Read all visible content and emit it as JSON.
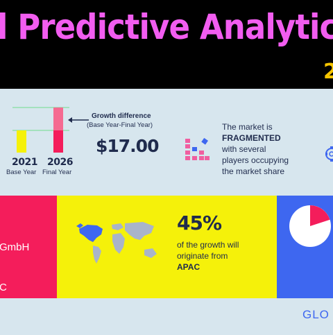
{
  "header": {
    "title": "l Predictive Analytics M",
    "year_fragment": "2"
  },
  "growth": {
    "label": "Growth difference",
    "sublabel": "(Base Year-Final Year)",
    "value": "$17.00",
    "base_year": "2021",
    "base_caption": "Base Year",
    "final_year": "2026",
    "final_caption": "Final Year"
  },
  "market": {
    "line1": "The market is",
    "line2": "FRAGMENTED",
    "line3": "with several",
    "line4": "players occupying",
    "line5": "the market share"
  },
  "vendors": {
    "item1": "GmbH",
    "item2": "C"
  },
  "region": {
    "percent": "45%",
    "line1": "of the growth will",
    "line2": "originate from",
    "region_name": "APAC"
  },
  "footer": {
    "brand": "GLO"
  },
  "colors": {
    "pink": "#f41d5b",
    "yellow": "#f5f10a",
    "blue": "#3e67f0",
    "magenta_title": "#f25df0",
    "gold": "#f5c400",
    "navy": "#1f2b4d"
  },
  "pie_share_percent": 20
}
